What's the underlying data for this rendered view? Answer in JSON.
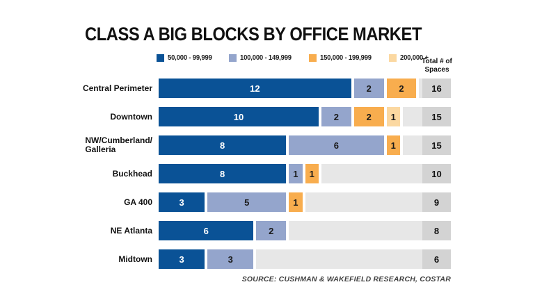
{
  "title": "CLASS A BIG BLOCKS BY OFFICE MARKET",
  "total_header": {
    "line1": "Total # of",
    "line2": "Spaces"
  },
  "source": "SOURCE: CUSHMAN & WAKEFIELD RESEARCH, COSTAR",
  "colors": {
    "dark_blue": "#0a5296",
    "light_blue": "#94a5cc",
    "orange": "#f8ad4e",
    "peach": "#fbd8a1",
    "track_fill": "#e7e7e7",
    "total_cell": "#d3d3d3",
    "text_dark": "#1a1a1a",
    "text_on_dark": "#ffffff"
  },
  "chart_data": {
    "type": "bar",
    "orientation": "horizontal",
    "stacked": true,
    "title": "CLASS A BIG BLOCKS BY OFFICE MARKET",
    "categories": [
      "Central Perimeter",
      "Downtown",
      "NW/Cumberland/\nGalleria",
      "Buckhead",
      "GA 400",
      "NE Atlanta",
      "Midtown"
    ],
    "series": [
      {
        "name": "50,000 - 99,999",
        "color": "#0a5296",
        "values": [
          12,
          10,
          8,
          8,
          3,
          6,
          3
        ]
      },
      {
        "name": "100,000 - 149,999",
        "color": "#94a5cc",
        "values": [
          2,
          2,
          6,
          1,
          5,
          2,
          3
        ]
      },
      {
        "name": "150,000 - 199,999",
        "color": "#f8ad4e",
        "values": [
          2,
          2,
          1,
          1,
          1,
          0,
          0
        ]
      },
      {
        "name": "200,000 +",
        "color": "#fbd8a1",
        "values": [
          0,
          1,
          0,
          0,
          0,
          0,
          0
        ]
      }
    ],
    "totals": [
      16,
      15,
      15,
      10,
      9,
      8,
      6
    ],
    "xlim": [
      0,
      16
    ],
    "legend_position": "top",
    "grid": false,
    "source": "SOURCE: CUSHMAN & WAKEFIELD RESEARCH, COSTAR"
  }
}
